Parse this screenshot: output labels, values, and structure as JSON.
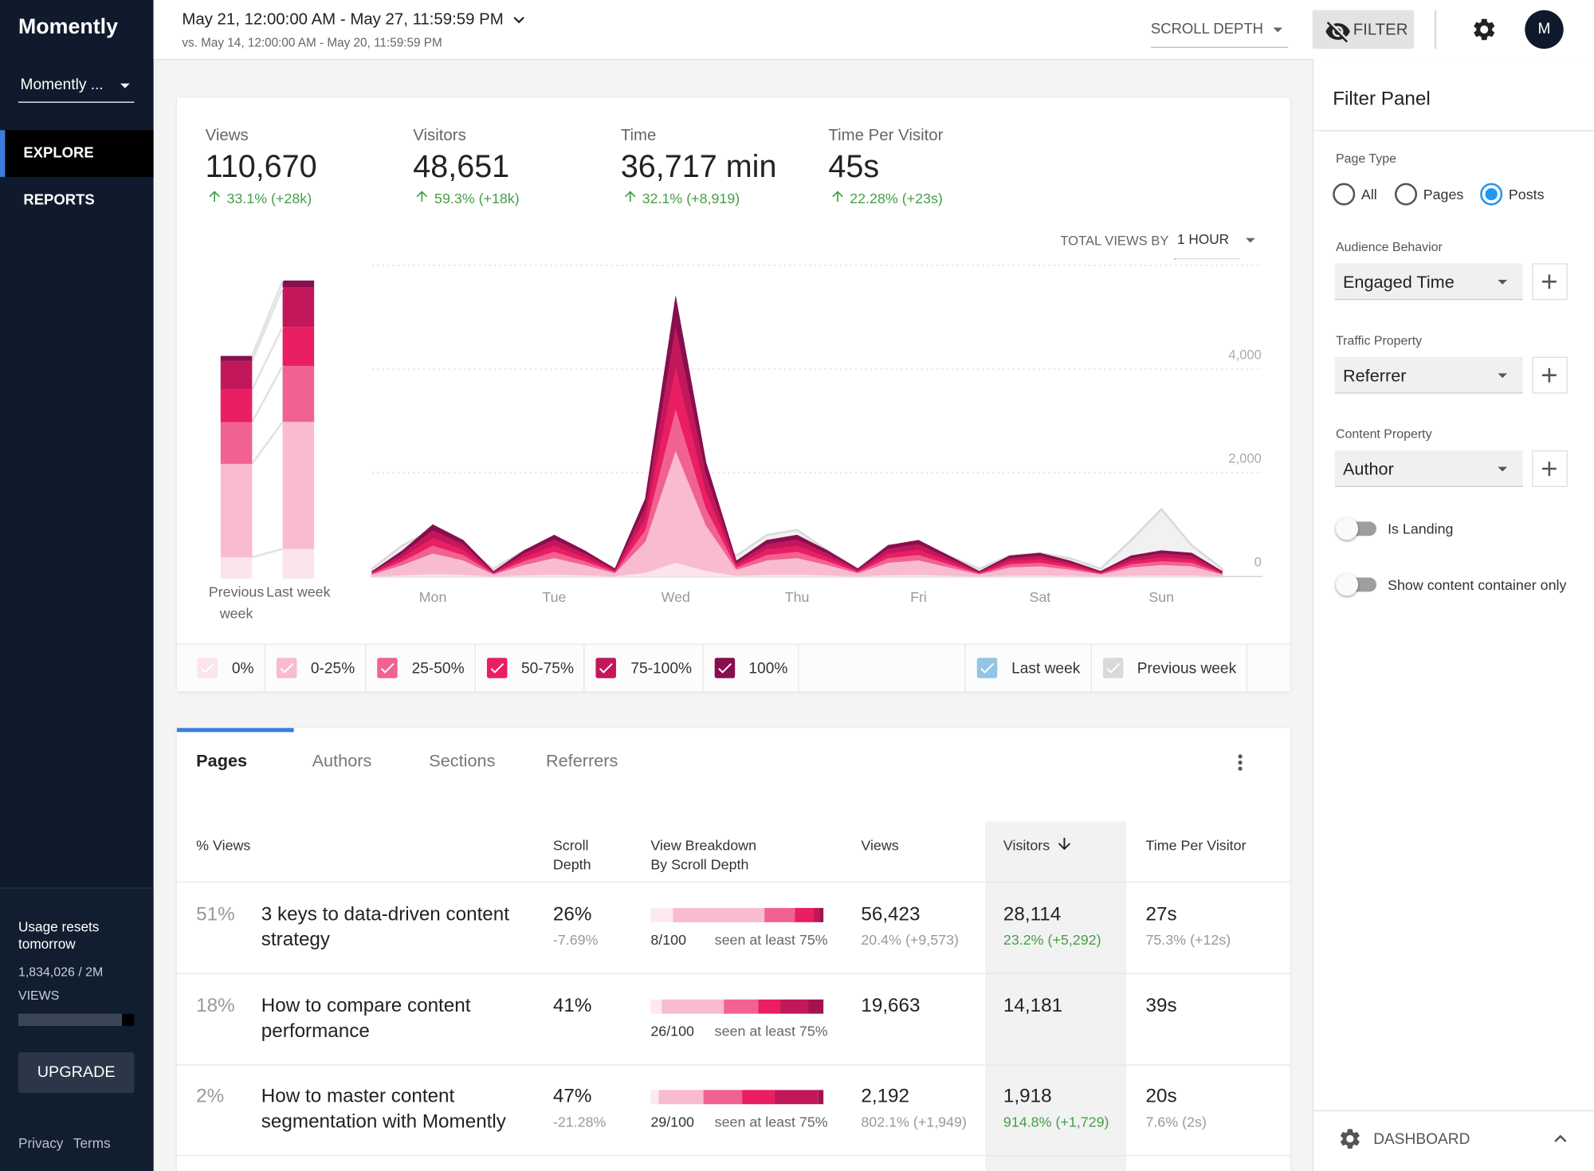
{
  "sidebar": {
    "brand": "Momently",
    "site": "Momently ...",
    "nav": [
      "EXPLORE",
      "REPORTS"
    ],
    "usage_title": "Usage resets tomorrow",
    "usage_count": "1,834,026 / 2M",
    "usage_unit": "VIEWS",
    "upgrade": "UPGRADE",
    "links": [
      "Privacy",
      "Terms"
    ]
  },
  "header": {
    "date_range": "May 21, 12:00:00 AM - May 27, 11:59:59 PM",
    "compare_range": "vs. May 14, 12:00:00 AM - May 20, 11:59:59 PM",
    "metric": "SCROLL DEPTH",
    "filter": "FILTER",
    "avatar": "M"
  },
  "stats": [
    {
      "label": "Views",
      "value": "110,670",
      "change": "33.1% (+28k)"
    },
    {
      "label": "Visitors",
      "value": "48,651",
      "change": "59.3% (+18k)"
    },
    {
      "label": "Time",
      "value": "36,717 min",
      "change": "32.1% (+8,919)"
    },
    {
      "label": "Time Per Visitor",
      "value": "45s",
      "change": "22.28% (+23s)"
    }
  ],
  "chart_controls": {
    "label": "TOTAL VIEWS BY",
    "interval": "1 HOUR"
  },
  "chart_data": [
    {
      "type": "area",
      "stacked": true,
      "x": [
        0,
        6,
        12,
        18,
        24,
        30,
        36,
        42,
        48,
        54,
        60,
        66,
        72,
        78,
        84,
        90,
        96,
        102,
        108,
        114,
        120,
        126,
        132,
        138,
        144,
        150,
        156,
        162,
        168
      ],
      "xlim": [
        0,
        176
      ],
      "xticks": [
        {
          "value": 12,
          "label": "Mon"
        },
        {
          "value": 36,
          "label": "Tue"
        },
        {
          "value": 60,
          "label": "Wed"
        },
        {
          "value": 84,
          "label": "Thu"
        },
        {
          "value": 108,
          "label": "Fri"
        },
        {
          "value": 132,
          "label": "Sat"
        },
        {
          "value": 156,
          "label": "Sun"
        }
      ],
      "ylim": [
        0,
        6000
      ],
      "yticks": [
        0,
        {
          "value": 2000,
          "label": "2,000"
        },
        {
          "value": 4000,
          "label": "4,000"
        }
      ],
      "grid": true,
      "stack_name": "Last week",
      "stack_color": "#93c5e3",
      "series": [
        {
          "name": "0%",
          "color": "#fce4ec",
          "values": [
            5,
            25,
            50,
            35,
            5,
            25,
            40,
            25,
            8,
            75,
            270,
            110,
            15,
            35,
            40,
            25,
            8,
            30,
            35,
            20,
            5,
            20,
            23,
            15,
            5,
            20,
            25,
            23,
            5
          ]
        },
        {
          "name": "0-25%",
          "color": "#f8bbd0",
          "values": [
            40,
            200,
            400,
            280,
            40,
            200,
            320,
            200,
            60,
            600,
            2160,
            880,
            120,
            280,
            320,
            200,
            60,
            240,
            280,
            160,
            40,
            160,
            180,
            120,
            40,
            160,
            200,
            180,
            40
          ]
        },
        {
          "name": "25-50%",
          "color": "#f06292",
          "values": [
            15,
            75,
            150,
            105,
            15,
            75,
            120,
            75,
            22,
            225,
            810,
            330,
            45,
            105,
            120,
            75,
            22,
            90,
            105,
            60,
            15,
            60,
            68,
            45,
            15,
            60,
            75,
            68,
            15
          ]
        },
        {
          "name": "50-75%",
          "color": "#e91e63",
          "values": [
            15,
            75,
            150,
            105,
            15,
            75,
            120,
            75,
            22,
            225,
            810,
            330,
            45,
            105,
            120,
            75,
            22,
            90,
            105,
            60,
            15,
            60,
            68,
            45,
            15,
            60,
            75,
            68,
            15
          ]
        },
        {
          "name": "75-100%",
          "color": "#c2185b",
          "values": [
            15,
            75,
            150,
            105,
            15,
            75,
            120,
            75,
            22,
            225,
            810,
            330,
            45,
            105,
            120,
            75,
            22,
            90,
            105,
            60,
            15,
            60,
            68,
            45,
            15,
            60,
            75,
            68,
            15
          ]
        },
        {
          "name": "100%",
          "color": "#880e4f",
          "values": [
            10,
            50,
            100,
            70,
            10,
            50,
            80,
            50,
            15,
            150,
            540,
            220,
            30,
            70,
            80,
            50,
            15,
            60,
            70,
            40,
            10,
            40,
            45,
            30,
            10,
            40,
            50,
            45,
            10
          ]
        }
      ],
      "comparison": {
        "name": "Previous week",
        "color": "#d9d9d9",
        "values": [
          150,
          600,
          900,
          600,
          150,
          500,
          700,
          450,
          150,
          700,
          1100,
          800,
          400,
          800,
          900,
          500,
          150,
          600,
          650,
          400,
          150,
          400,
          450,
          350,
          150,
          700,
          1300,
          600,
          150
        ]
      }
    },
    {
      "type": "bar",
      "stacked": true,
      "categories": [
        "Previous week",
        "Last week"
      ],
      "ylim": [
        0,
        120000
      ],
      "series": [
        {
          "color": "#fce4ec",
          "values": [
            7900,
            11000
          ]
        },
        {
          "color": "#f8bbd0",
          "values": [
            34700,
            47200
          ]
        },
        {
          "color": "#f06292",
          "values": [
            15500,
            20800
          ]
        },
        {
          "color": "#e91e63",
          "values": [
            12100,
            14400
          ]
        },
        {
          "color": "#c2185b",
          "values": [
            10600,
            14700
          ]
        },
        {
          "color": "#880e4f",
          "values": [
            1900,
            2600
          ]
        }
      ]
    }
  ],
  "table": {
    "tabs": [
      "Pages",
      "Authors",
      "Sections",
      "Referrers"
    ],
    "columns": [
      "% Views",
      "Scroll Depth",
      "View Breakdown By Scroll Depth",
      "Views",
      "Visitors",
      "Time Per Visitor"
    ],
    "rows": [
      {
        "share": "51%",
        "title": "3 keys to data-driven content strategy",
        "scroll_depth": "26%",
        "scroll_depth_change": "-7.69%",
        "breakdown": "8/100",
        "breakdown_note": "seen at least 75%",
        "views": "56,423",
        "views_change": "20.4% (+9,573)",
        "visitors": "28,114",
        "visitors_change": "23.2% (+5,292)",
        "time_per_visitor": "27s",
        "time_per_visitor_change": "75.3% (+12s)"
      },
      {
        "share": "18%",
        "title": "How to compare content performance",
        "scroll_depth": "41%",
        "breakdown": "26/100",
        "breakdown_note": "seen at least 75%",
        "views": "19,663",
        "visitors": "14,181",
        "time_per_visitor": "39s"
      },
      {
        "share": "2%",
        "title": "How to master content segmentation with Momently",
        "scroll_depth": "47%",
        "scroll_depth_change": "-21.28%",
        "breakdown": "29/100",
        "breakdown_note": "seen at least 75%",
        "views": "2,192",
        "views_change": "802.1% (+1,949)",
        "visitors": "1,918",
        "visitors_change": "914.8% (+1,729)",
        "time_per_visitor": "20s",
        "time_per_visitor_change": "7.6% (2s)"
      }
    ]
  },
  "filter_panel": {
    "title": "Filter Panel",
    "page_type": {
      "label": "Page Type",
      "options": [
        "All",
        "Pages",
        "Posts"
      ],
      "selected": 2
    },
    "selects": [
      {
        "label": "Audience Behavior",
        "value": "Engaged Time"
      },
      {
        "label": "Traffic Property",
        "value": "Referrer"
      },
      {
        "label": "Content Property",
        "value": "Author"
      }
    ],
    "toggles": [
      "Is Landing",
      "Show content container only"
    ],
    "footer": "DASHBOARD"
  }
}
